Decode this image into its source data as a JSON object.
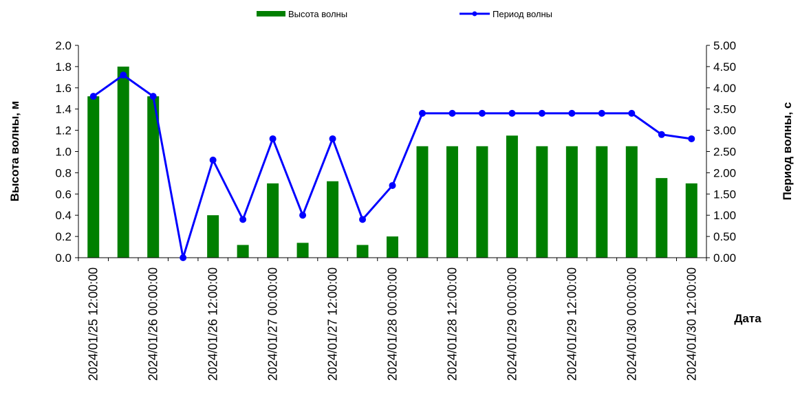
{
  "chart_data": {
    "type": "bar+line",
    "legend": {
      "bar_label": "Высота волны",
      "line_label": "Период волны",
      "placement": "top-center"
    },
    "x_axis": {
      "title": "Дата",
      "tick_labels": [
        "2024/01/25 12:00:00",
        "2024/01/26 00:00:00",
        "2024/01/26 12:00:00",
        "2024/01/27 00:00:00",
        "2024/01/27 12:00:00",
        "2024/01/28 00:00:00",
        "2024/01/28 12:00:00",
        "2024/01/29 00:00:00",
        "2024/01/29 12:00:00",
        "2024/01/30 00:00:00",
        "2024/01/30 12:00:00"
      ]
    },
    "y_left": {
      "title": "Высота волны, м",
      "ylim": [
        0,
        2.0
      ],
      "ticks": [
        "0.0",
        "0.2",
        "0.4",
        "0.6",
        "0.8",
        "1.0",
        "1.2",
        "1.4",
        "1.6",
        "1.8",
        "2.0"
      ]
    },
    "y_right": {
      "title": "Период волны, с",
      "ylim": [
        0,
        5.0
      ],
      "ticks": [
        "0.00",
        "0.50",
        "1.00",
        "1.50",
        "2.00",
        "2.50",
        "3.00",
        "3.50",
        "4.00",
        "4.50",
        "5.00"
      ]
    },
    "x": [
      "2024/01/25 12:00:00",
      "2024/01/25 18:00:00",
      "2024/01/26 00:00:00",
      "2024/01/26 06:00:00",
      "2024/01/26 12:00:00",
      "2024/01/26 18:00:00",
      "2024/01/27 00:00:00",
      "2024/01/27 06:00:00",
      "2024/01/27 12:00:00",
      "2024/01/27 18:00:00",
      "2024/01/28 00:00:00",
      "2024/01/28 06:00:00",
      "2024/01/28 12:00:00",
      "2024/01/28 18:00:00",
      "2024/01/29 00:00:00",
      "2024/01/29 06:00:00",
      "2024/01/29 12:00:00",
      "2024/01/29 18:00:00",
      "2024/01/30 00:00:00",
      "2024/01/30 06:00:00",
      "2024/01/30 12:00:00"
    ],
    "series": [
      {
        "name": "Высота волны",
        "kind": "bar",
        "color": "#007f00",
        "axis": "left",
        "values": [
          1.52,
          1.8,
          1.52,
          0.0,
          0.4,
          0.12,
          0.7,
          0.14,
          0.72,
          0.12,
          0.2,
          1.05,
          1.05,
          1.05,
          1.15,
          1.05,
          1.05,
          1.05,
          1.05,
          0.75,
          0.7
        ]
      },
      {
        "name": "Период волны",
        "kind": "line",
        "color": "#0000ff",
        "axis": "right",
        "values": [
          3.8,
          4.3,
          3.8,
          0.0,
          2.3,
          0.9,
          2.8,
          1.0,
          2.8,
          0.9,
          1.7,
          3.4,
          3.4,
          3.4,
          3.4,
          3.4,
          3.4,
          3.4,
          3.4,
          2.9,
          2.8
        ]
      }
    ],
    "grid": false
  }
}
